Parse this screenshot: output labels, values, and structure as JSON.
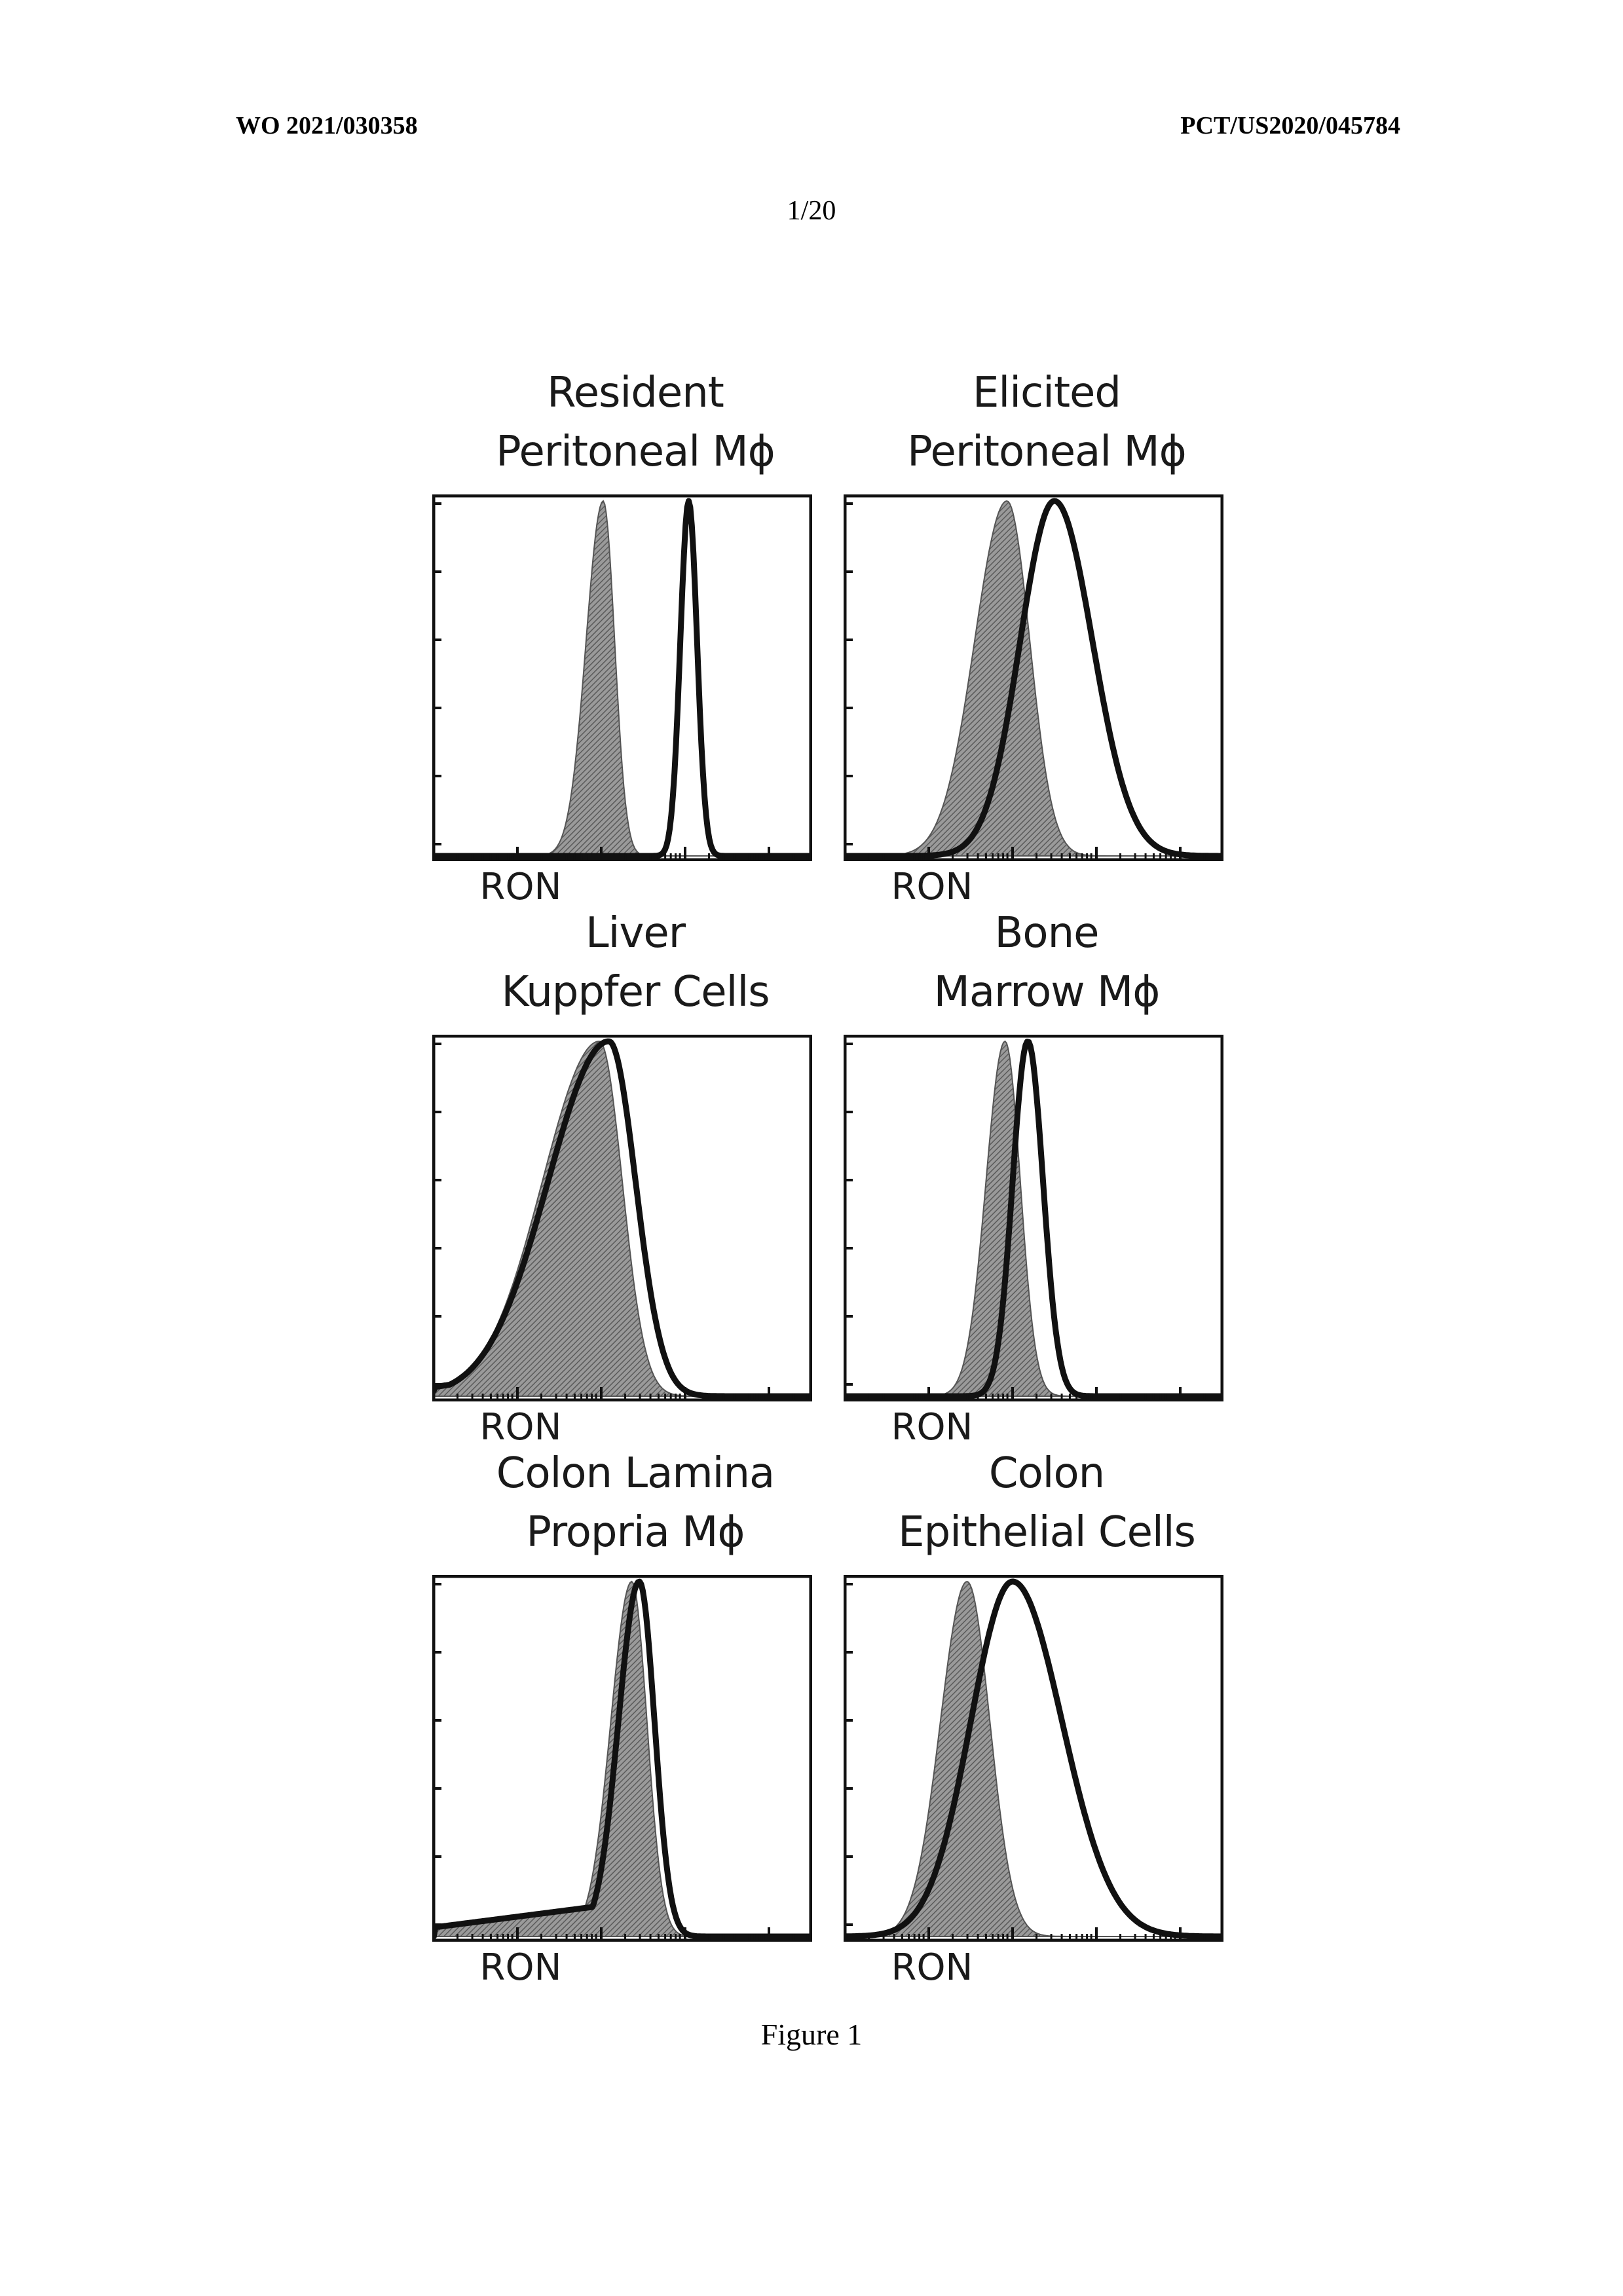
{
  "header": {
    "left": "WO 2021/030358",
    "right": "PCT/US2020/045784",
    "page": "1/20"
  },
  "caption": "Figure 1",
  "chart_data": [
    {
      "type": "area",
      "title_lines": [
        "Resident",
        "Peritoneal Mϕ"
      ],
      "xlabel": "RON",
      "series": [
        {
          "style": "filled-gray",
          "peak_pos": 0.45,
          "width_left": 0.045,
          "width_right": 0.03,
          "tail": 0.0
        },
        {
          "style": "outline-black",
          "peak_pos": 0.675,
          "width_left": 0.022,
          "width_right": 0.022,
          "tail": 0.0
        }
      ]
    },
    {
      "type": "area",
      "title_lines": [
        "Elicited",
        "Peritoneal Mϕ"
      ],
      "xlabel": "RON",
      "series": [
        {
          "style": "filled-gray",
          "peak_pos": 0.43,
          "width_left": 0.085,
          "width_right": 0.06,
          "tail": 0.0
        },
        {
          "style": "outline-black",
          "peak_pos": 0.555,
          "width_left": 0.09,
          "width_right": 0.1,
          "tail": 0.0
        }
      ]
    },
    {
      "type": "area",
      "title_lines": [
        "Liver",
        "Kuppfer Cells"
      ],
      "xlabel": "RON",
      "series": [
        {
          "style": "filled-gray",
          "peak_pos": 0.44,
          "width_left": 0.15,
          "width_right": 0.06,
          "tail": 0.1
        },
        {
          "style": "outline-black",
          "peak_pos": 0.465,
          "width_left": 0.16,
          "width_right": 0.07,
          "tail": 0.1
        }
      ]
    },
    {
      "type": "area",
      "title_lines": [
        "Bone",
        "Marrow Mϕ"
      ],
      "xlabel": "RON",
      "series": [
        {
          "style": "filled-gray",
          "peak_pos": 0.425,
          "width_left": 0.05,
          "width_right": 0.04,
          "tail": 0.0
        },
        {
          "style": "outline-black",
          "peak_pos": 0.485,
          "width_left": 0.04,
          "width_right": 0.04,
          "tail": 0.0
        }
      ]
    },
    {
      "type": "area",
      "title_lines": [
        "Colon Lamina",
        "Propria Mϕ"
      ],
      "xlabel": "RON",
      "series": [
        {
          "style": "filled-gray",
          "peak_pos": 0.525,
          "width_left": 0.055,
          "width_right": 0.04,
          "tail": 0.1
        },
        {
          "style": "outline-black",
          "peak_pos": 0.545,
          "width_left": 0.055,
          "width_right": 0.04,
          "tail": 0.1
        }
      ]
    },
    {
      "type": "area",
      "title_lines": [
        "Colon",
        "Epithelial Cells"
      ],
      "xlabel": "RON",
      "series": [
        {
          "style": "filled-gray",
          "peak_pos": 0.325,
          "width_left": 0.07,
          "width_right": 0.06,
          "tail": 0.0
        },
        {
          "style": "outline-black",
          "peak_pos": 0.445,
          "width_left": 0.11,
          "width_right": 0.13,
          "tail": 0.0
        }
      ]
    }
  ]
}
